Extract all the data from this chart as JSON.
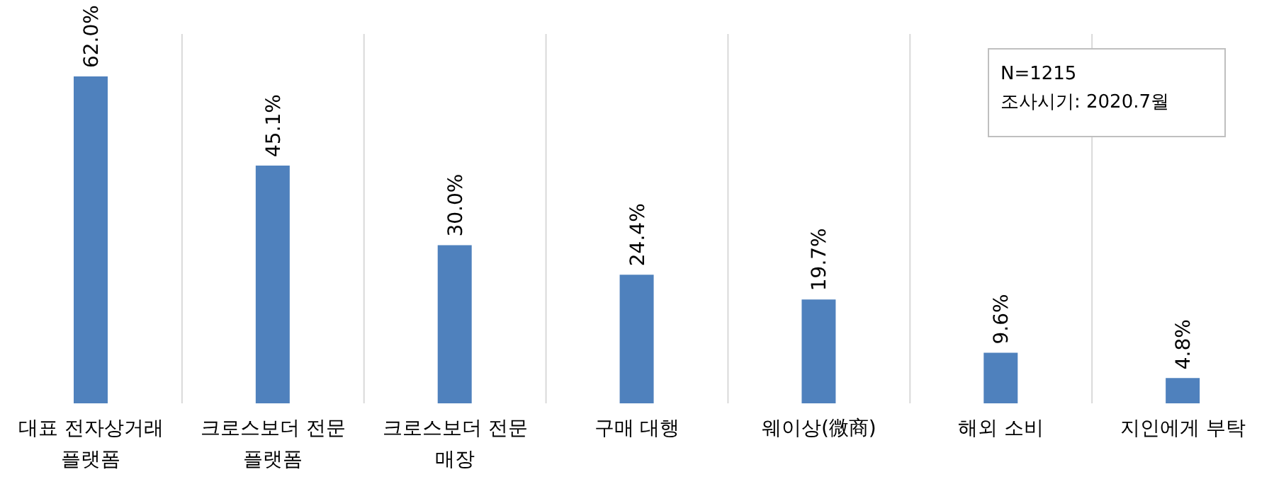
{
  "chart_data": {
    "type": "bar",
    "categories": [
      "대표 전자상거래 플랫폼",
      "크로스보더 전문 플랫폼",
      "크로스보더 전문 매장",
      "구매 대행",
      "웨이상(微商)",
      "해외 소비",
      "지인에게 부탁"
    ],
    "values": [
      62.0,
      45.1,
      30.0,
      24.4,
      19.7,
      9.6,
      4.8
    ],
    "value_labels": [
      "62.0%",
      "45.1%",
      "30.0%",
      "24.4%",
      "19.7%",
      "9.6%",
      "4.8%"
    ],
    "color": "#4f81bd",
    "grid": "x",
    "annotations": [
      "N=1215",
      "조사시기: 2020.7월"
    ]
  }
}
